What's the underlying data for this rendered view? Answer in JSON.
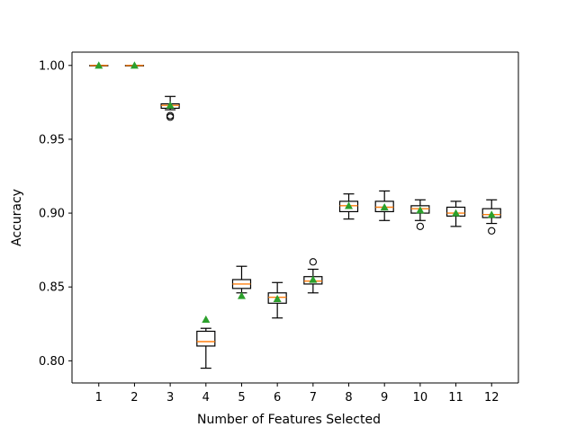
{
  "chart_data": {
    "type": "boxplot",
    "title": "",
    "xlabel": "Number of Features Selected",
    "ylabel": "Accuracy",
    "categories": [
      "1",
      "2",
      "3",
      "4",
      "5",
      "6",
      "7",
      "8",
      "9",
      "10",
      "11",
      "12"
    ],
    "ylim": [
      0.785,
      1.009
    ],
    "yticks": [
      0.8,
      0.85,
      0.9,
      0.95,
      1.0
    ],
    "ytick_labels": [
      "0.80",
      "0.85",
      "0.90",
      "0.95",
      "1.00"
    ],
    "grid": false,
    "legend": "none",
    "colors": {
      "box": "#000000",
      "median": "#ff7f0e",
      "mean_marker": "#2ca02c",
      "outlier": "#000000"
    },
    "boxes": [
      {
        "category": "1",
        "whislo": 1.0,
        "q1": 1.0,
        "med": 1.0,
        "q3": 1.0,
        "whishi": 1.0,
        "mean": 1.0,
        "fliers": []
      },
      {
        "category": "2",
        "whislo": 1.0,
        "q1": 1.0,
        "med": 1.0,
        "q3": 1.0,
        "whishi": 1.0,
        "mean": 1.0,
        "fliers": []
      },
      {
        "category": "3",
        "whislo": 0.97,
        "q1": 0.971,
        "med": 0.973,
        "q3": 0.974,
        "whishi": 0.979,
        "mean": 0.973,
        "fliers": [
          0.966,
          0.965
        ]
      },
      {
        "category": "4",
        "whislo": 0.795,
        "q1": 0.81,
        "med": 0.813,
        "q3": 0.82,
        "whishi": 0.822,
        "mean": 0.828,
        "fliers": []
      },
      {
        "category": "5",
        "whislo": 0.846,
        "q1": 0.849,
        "med": 0.852,
        "q3": 0.855,
        "whishi": 0.864,
        "mean": 0.844,
        "fliers": []
      },
      {
        "category": "6",
        "whislo": 0.829,
        "q1": 0.839,
        "med": 0.843,
        "q3": 0.846,
        "whishi": 0.853,
        "mean": 0.842,
        "fliers": []
      },
      {
        "category": "7",
        "whislo": 0.846,
        "q1": 0.852,
        "med": 0.854,
        "q3": 0.857,
        "whishi": 0.862,
        "mean": 0.855,
        "fliers": [
          0.867
        ]
      },
      {
        "category": "8",
        "whislo": 0.896,
        "q1": 0.901,
        "med": 0.905,
        "q3": 0.908,
        "whishi": 0.913,
        "mean": 0.905,
        "fliers": []
      },
      {
        "category": "9",
        "whislo": 0.895,
        "q1": 0.901,
        "med": 0.904,
        "q3": 0.908,
        "whishi": 0.915,
        "mean": 0.904,
        "fliers": []
      },
      {
        "category": "10",
        "whislo": 0.895,
        "q1": 0.9,
        "med": 0.903,
        "q3": 0.905,
        "whishi": 0.909,
        "mean": 0.902,
        "fliers": [
          0.891
        ]
      },
      {
        "category": "11",
        "whislo": 0.891,
        "q1": 0.898,
        "med": 0.9,
        "q3": 0.904,
        "whishi": 0.908,
        "mean": 0.9,
        "fliers": []
      },
      {
        "category": "12",
        "whislo": 0.893,
        "q1": 0.897,
        "med": 0.899,
        "q3": 0.903,
        "whishi": 0.909,
        "mean": 0.899,
        "fliers": [
          0.888
        ]
      }
    ]
  }
}
